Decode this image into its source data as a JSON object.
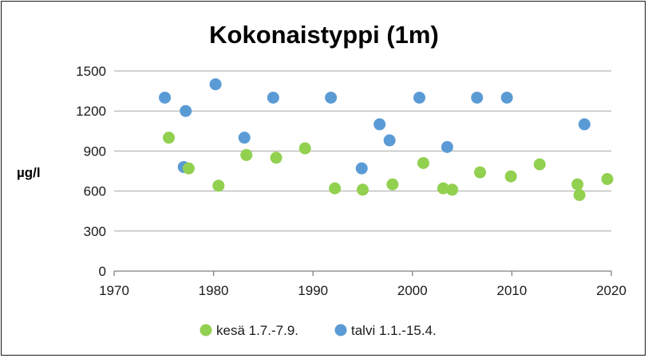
{
  "chart_data": {
    "type": "scatter",
    "title": "Kokonaistyppi (1m)",
    "ylabel": "µg/l",
    "xlabel": "",
    "xlim": [
      1970,
      2020
    ],
    "ylim": [
      0,
      1500
    ],
    "xticks": [
      1970,
      1980,
      1990,
      2000,
      2010,
      2020
    ],
    "yticks": [
      0,
      300,
      600,
      900,
      1200,
      1500
    ],
    "grid": "horizontal",
    "legend_position": "bottom",
    "series": [
      {
        "name": "kesä 1.7.-7.9.",
        "color": "#92d050",
        "points": [
          [
            1975.5,
            1000
          ],
          [
            1977.5,
            770
          ],
          [
            1980.5,
            640
          ],
          [
            1983.3,
            870
          ],
          [
            1986.3,
            850
          ],
          [
            1989.2,
            920
          ],
          [
            1992.2,
            620
          ],
          [
            1995.0,
            610
          ],
          [
            1998.0,
            650
          ],
          [
            2001.1,
            810
          ],
          [
            2003.1,
            620
          ],
          [
            2004.0,
            610
          ],
          [
            2006.8,
            740
          ],
          [
            2009.9,
            710
          ],
          [
            2012.8,
            800
          ],
          [
            2016.6,
            650
          ],
          [
            2016.8,
            570
          ],
          [
            2019.6,
            690
          ]
        ]
      },
      {
        "name": "talvi 1.1.-15.4.",
        "color": "#5b9bd5",
        "points": [
          [
            1975.1,
            1300
          ],
          [
            1977.0,
            780
          ],
          [
            1977.2,
            1200
          ],
          [
            1980.2,
            1400
          ],
          [
            1983.1,
            1000
          ],
          [
            1986.0,
            1300
          ],
          [
            1991.8,
            1300
          ],
          [
            1994.9,
            770
          ],
          [
            1996.7,
            1100
          ],
          [
            1997.7,
            980
          ],
          [
            2000.7,
            1300
          ],
          [
            2003.5,
            930
          ],
          [
            2006.5,
            1300
          ],
          [
            2009.5,
            1300
          ],
          [
            2017.3,
            1100
          ]
        ]
      }
    ]
  }
}
